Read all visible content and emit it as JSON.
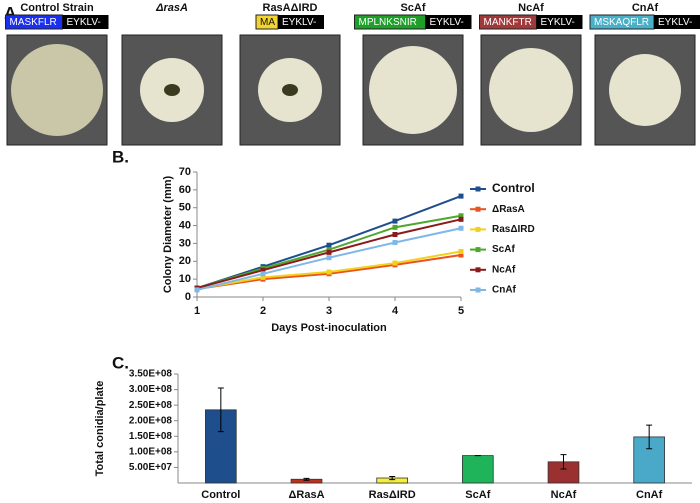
{
  "panel_a": {
    "label": "A.",
    "strains": [
      {
        "name": "Control Strain",
        "tag": "MASKFLR",
        "suffix": "EYKLV-",
        "tag_color": "#1a2ff0",
        "tag_text": "#ffffff"
      },
      {
        "name": "ΔrasA"
      },
      {
        "name": "RasAΔIRD",
        "tag": "MA",
        "suffix": "EYKLV-",
        "tag_color": "#f2d330",
        "tag_text": "#111111"
      },
      {
        "name": "ScAf",
        "tag": "MPLNKSNIR",
        "suffix": "EYKLV-",
        "tag_color": "#1f9e2a",
        "tag_text": "#ffffff"
      },
      {
        "name": "NcAf",
        "tag": "MANKFTR",
        "suffix": "EYKLV-",
        "tag_color": "#a03a3a",
        "tag_text": "#ffffff"
      },
      {
        "name": "CnAf",
        "tag": "MSKAQFLR",
        "suffix": "EYKLV-",
        "tag_color": "#4ab0c8",
        "tag_text": "#ffffff"
      }
    ]
  },
  "chart_data": [
    {
      "type": "line",
      "panel": "B.",
      "y_label": "Colony Diameter (mm)",
      "x_label": "Days Post-inoculation",
      "x": [
        1,
        2,
        3,
        4,
        5
      ],
      "xlim": [
        1,
        5
      ],
      "xticks": [
        1,
        2,
        3,
        4,
        5
      ],
      "ylim": [
        0,
        70
      ],
      "yticks": [
        0,
        10,
        20,
        30,
        40,
        50,
        60,
        70
      ],
      "series": [
        {
          "name": "Control",
          "color": "#1f4e8c",
          "values": [
            5,
            17,
            29,
            42.5,
            56.5
          ]
        },
        {
          "name": "ΔRasA",
          "color": "#e8531f",
          "values": [
            4.5,
            10,
            13,
            18,
            23.5
          ]
        },
        {
          "name": "RasΔIRD",
          "color": "#f2d11a",
          "values": [
            4.5,
            11,
            14,
            19,
            25.5
          ]
        },
        {
          "name": "ScAf",
          "color": "#4ea72e",
          "values": [
            5,
            16,
            26.5,
            39,
            45.5
          ]
        },
        {
          "name": "NcAf",
          "color": "#8b1a1a",
          "values": [
            5,
            15,
            25,
            35,
            43.5
          ]
        },
        {
          "name": "CnAf",
          "color": "#7fb7e6",
          "values": [
            4,
            13,
            22,
            30.5,
            38.5
          ]
        }
      ]
    },
    {
      "type": "bar",
      "panel": "C.",
      "y_label": "Total conidia/plate",
      "categories": [
        "Control",
        "ΔRasA",
        "RasΔIRD",
        "ScAf",
        "NcAf",
        "CnAf"
      ],
      "values": [
        235000000,
        12000000,
        16000000,
        88000000,
        68000000,
        148000000
      ],
      "errors": [
        70000000,
        3000000,
        5000000,
        0,
        23000000,
        38000000
      ],
      "colors": [
        "#1f4e8c",
        "#c0301e",
        "#f5ef3a",
        "#1fb35a",
        "#9b3030",
        "#4aa8c8"
      ],
      "ylim": [
        0,
        350000000
      ],
      "yticks": [
        {
          "value": 50000000,
          "label": "5.00E+07"
        },
        {
          "value": 100000000,
          "label": "1.00E+08"
        },
        {
          "value": 150000000,
          "label": "1.50E+08"
        },
        {
          "value": 200000000,
          "label": "2.00E+08"
        },
        {
          "value": 250000000,
          "label": "2.50E+08"
        },
        {
          "value": 300000000,
          "label": "3.00E+08"
        },
        {
          "value": 350000000,
          "label": "3.50E+08"
        }
      ]
    }
  ]
}
